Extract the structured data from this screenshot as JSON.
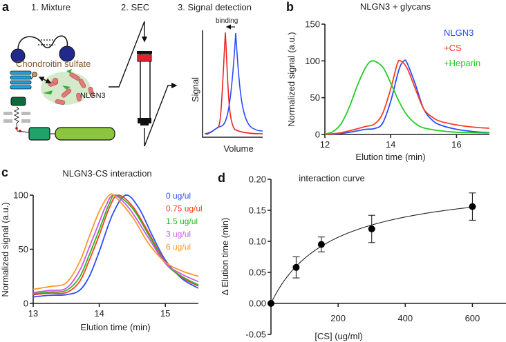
{
  "panel_letters": {
    "a": "a",
    "b": "b",
    "c": "c",
    "d": "d"
  },
  "diagram": {
    "step1": "1. Mixture",
    "step2": "2. SEC",
    "step3": "3. Signal detection",
    "glycan_label": "Chondroitin sulfate",
    "protein_label": "NLGN3",
    "binding_label": "binding",
    "signal_axis": "Signal",
    "volume_axis": "Volume",
    "colors": {
      "glycan": "#8b5a2b",
      "unbound": "#2b4cff",
      "bound": "#ee2222"
    }
  },
  "chart_data": [
    {
      "id": "b",
      "type": "line",
      "title": "NLGN3 + glycans",
      "xlabel": "Elution time (min)",
      "ylabel": "Normalized signal (a.u.)",
      "xlim": [
        12,
        17
      ],
      "ylim": [
        0,
        150
      ],
      "xticks": [
        "12",
        "14",
        "16"
      ],
      "xtick_values": [
        12,
        14,
        16
      ],
      "yticks": [
        "0",
        "50",
        "100",
        "150"
      ],
      "ytick_values": [
        0,
        50,
        100,
        150
      ],
      "legend": "top-right",
      "series": [
        {
          "name": "NLGN3",
          "color": "#2b4cff",
          "x": [
            12,
            12.25,
            12.5,
            12.75,
            13,
            13.25,
            13.5,
            13.75,
            14,
            14.25,
            14.4,
            14.5,
            14.75,
            15,
            15.25,
            15.5,
            16,
            16.5,
            17
          ],
          "y": [
            0,
            0.5,
            1.5,
            3,
            5,
            7,
            8,
            15,
            45,
            88,
            100,
            97,
            68,
            35,
            20,
            13,
            7,
            4,
            2.5
          ]
        },
        {
          "name": "+CS",
          "color": "#ff3b1f",
          "x": [
            12,
            12.25,
            12.5,
            12.75,
            13,
            13.25,
            13.5,
            13.75,
            14,
            14.2,
            14.3,
            14.5,
            14.75,
            15,
            15.25,
            15.5,
            16,
            16.5,
            17
          ],
          "y": [
            0,
            1,
            2.5,
            5,
            8,
            11,
            14,
            28,
            62,
            96,
            100,
            90,
            62,
            35,
            24,
            18,
            13,
            10,
            8.5
          ]
        },
        {
          "name": "+Heparin",
          "color": "#22cc22",
          "x": [
            12,
            12.25,
            12.5,
            12.75,
            13,
            13.25,
            13.45,
            13.75,
            14,
            14.25,
            14.5,
            14.75,
            15,
            15.5,
            16,
            17
          ],
          "y": [
            0.5,
            4,
            15,
            38,
            68,
            92,
            100,
            92,
            70,
            45,
            26,
            15,
            9,
            5,
            3,
            2
          ]
        }
      ]
    },
    {
      "id": "c",
      "type": "line",
      "title": "NLGN3-CS interaction",
      "xlabel": "Elution time (min)",
      "ylabel": "Normalized signal (a.u.)",
      "xlim": [
        13,
        15.5
      ],
      "ylim": [
        0,
        100
      ],
      "xticks": [
        "13",
        "14",
        "15"
      ],
      "xtick_values": [
        13,
        14,
        15
      ],
      "yticks": [
        "0",
        "50",
        "100"
      ],
      "ytick_values": [
        0,
        50,
        100
      ],
      "legend": "top-right",
      "series": [
        {
          "name": "0 ug/ul",
          "color": "#2b4cff",
          "x": [
            13,
            13.25,
            13.5,
            13.7,
            13.85,
            14,
            14.2,
            14.4,
            14.6,
            14.8,
            15,
            15.25,
            15.5
          ],
          "y": [
            6,
            7.5,
            8,
            12,
            25,
            48,
            82,
            100,
            88,
            63,
            40,
            23,
            14
          ]
        },
        {
          "name": "0.75 ug/ul",
          "color": "#ff3b1f",
          "x": [
            13,
            13.25,
            13.5,
            13.7,
            13.85,
            14,
            14.15,
            14.28,
            14.5,
            14.75,
            15,
            15.25,
            15.5
          ],
          "y": [
            8,
            9.5,
            10,
            20,
            40,
            63,
            88,
            100,
            90,
            65,
            38,
            24,
            16
          ]
        },
        {
          "name": "1.5 ug/ul",
          "color": "#22bb22",
          "x": [
            13,
            13.25,
            13.5,
            13.7,
            13.85,
            14,
            14.15,
            14.25,
            14.5,
            14.75,
            15,
            15.25,
            15.5
          ],
          "y": [
            9,
            10.5,
            12,
            24,
            45,
            68,
            92,
            100,
            88,
            63,
            37,
            25,
            17
          ]
        },
        {
          "name": "3 ug/ul",
          "color": "#cc55ee",
          "x": [
            13,
            13.25,
            13.5,
            13.7,
            13.85,
            14,
            14.1,
            14.22,
            14.45,
            14.75,
            15,
            15.25,
            15.5
          ],
          "y": [
            10,
            12,
            14,
            30,
            52,
            75,
            90,
            100,
            88,
            60,
            37,
            27,
            20
          ]
        },
        {
          "name": "6 ug/ul",
          "color": "#ff9922",
          "x": [
            13,
            13.25,
            13.5,
            13.7,
            13.85,
            14,
            14.15,
            14.25,
            14.5,
            14.75,
            15,
            15.25,
            15.5
          ],
          "y": [
            13,
            15.5,
            19,
            38,
            62,
            85,
            100,
            98,
            80,
            55,
            38,
            30,
            25
          ]
        }
      ]
    },
    {
      "id": "d",
      "type": "scatter",
      "title": "interaction curve",
      "xlabel": "[CS] (ug/ml)",
      "ylabel": "Δ Elution time (min)",
      "xlim": [
        0,
        700
      ],
      "ylim": [
        -0.05,
        0.2
      ],
      "xticks": [
        "200",
        "400",
        "600"
      ],
      "xtick_values": [
        200,
        400,
        600
      ],
      "yticks": [
        "-0.05",
        "0.00",
        "0.05",
        "0.10",
        "0.15",
        "0.20"
      ],
      "ytick_values": [
        -0.05,
        0,
        0.05,
        0.1,
        0.15,
        0.2
      ],
      "points": {
        "x": [
          0,
          75,
          150,
          300,
          600
        ],
        "y": [
          0,
          0.058,
          0.095,
          0.12,
          0.156
        ],
        "err": [
          0,
          0.017,
          0.012,
          0.022,
          0.022
        ]
      },
      "fit": {
        "model": "one-site binding",
        "bmax": 0.201,
        "kd": 177.5
      }
    }
  ]
}
